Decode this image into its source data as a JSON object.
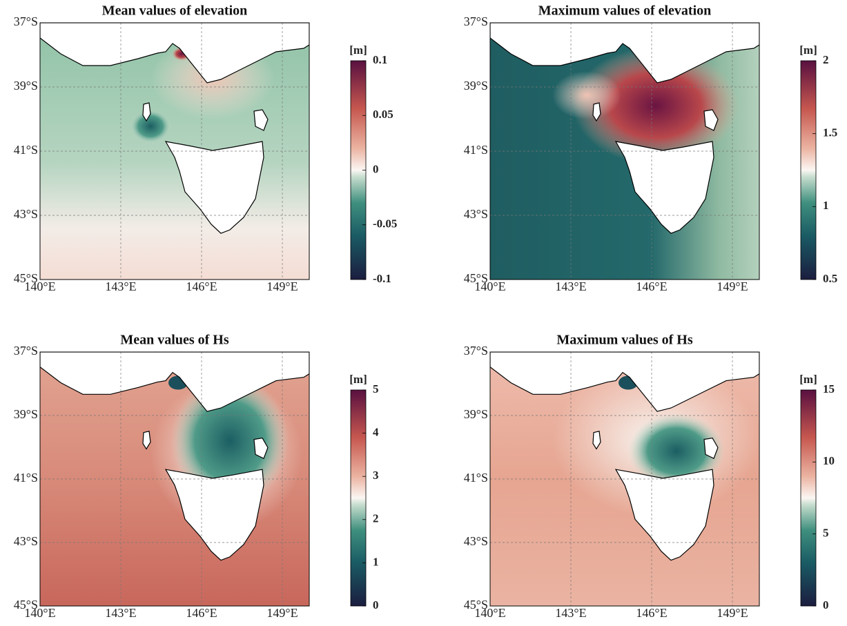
{
  "panels": [
    {
      "title": "Mean values of elevation",
      "xlim": [
        140,
        150
      ],
      "ylim": [
        -45,
        -37
      ],
      "lat_ticks": [
        {
          "value": -37,
          "label": "37°S"
        },
        {
          "value": -39,
          "label": "39°S"
        },
        {
          "value": -41,
          "label": "41°S"
        },
        {
          "value": -43,
          "label": "43°S"
        },
        {
          "value": -45,
          "label": "45°S"
        }
      ],
      "lon_ticks": [
        {
          "value": 140,
          "label": "140°E"
        },
        {
          "value": 143,
          "label": "143°E"
        },
        {
          "value": 146,
          "label": "146°E"
        },
        {
          "value": 149,
          "label": "149°E"
        }
      ],
      "colorbar": {
        "unit": "[m]",
        "lim": [
          -0.1,
          0.1
        ],
        "ticks": [
          -0.1,
          -0.05,
          0,
          0.05,
          0.1
        ]
      }
    },
    {
      "title": "Maximum values of elevation",
      "xlim": [
        140,
        150
      ],
      "ylim": [
        -45,
        -37
      ],
      "lat_ticks": [
        {
          "value": -37,
          "label": "37°S"
        },
        {
          "value": -39,
          "label": "39°S"
        },
        {
          "value": -41,
          "label": "41°S"
        },
        {
          "value": -43,
          "label": "43°S"
        },
        {
          "value": -45,
          "label": "45°S"
        }
      ],
      "lon_ticks": [
        {
          "value": 140,
          "label": "140°E"
        },
        {
          "value": 143,
          "label": "143°E"
        },
        {
          "value": 146,
          "label": "146°E"
        },
        {
          "value": 149,
          "label": "149°E"
        }
      ],
      "colorbar": {
        "unit": "[m]",
        "lim": [
          0.5,
          2
        ],
        "ticks": [
          0.5,
          1,
          1.5,
          2
        ]
      }
    },
    {
      "title": "Mean values of Hs",
      "xlim": [
        140,
        150
      ],
      "ylim": [
        -45,
        -37
      ],
      "lat_ticks": [
        {
          "value": -37,
          "label": "37°S"
        },
        {
          "value": -39,
          "label": "39°S"
        },
        {
          "value": -41,
          "label": "41°S"
        },
        {
          "value": -43,
          "label": "43°S"
        },
        {
          "value": -45,
          "label": "45°S"
        }
      ],
      "lon_ticks": [
        {
          "value": 140,
          "label": "140°E"
        },
        {
          "value": 143,
          "label": "143°E"
        },
        {
          "value": 146,
          "label": "146°E"
        },
        {
          "value": 149,
          "label": "149°E"
        }
      ],
      "colorbar": {
        "unit": "[m]",
        "lim": [
          0,
          5
        ],
        "ticks": [
          0,
          1,
          2,
          3,
          4,
          5
        ]
      }
    },
    {
      "title": "Maximum values of Hs",
      "xlim": [
        140,
        150
      ],
      "ylim": [
        -45,
        -37
      ],
      "lat_ticks": [
        {
          "value": -37,
          "label": "37°S"
        },
        {
          "value": -39,
          "label": "39°S"
        },
        {
          "value": -41,
          "label": "41°S"
        },
        {
          "value": -43,
          "label": "43°S"
        },
        {
          "value": -45,
          "label": "45°S"
        }
      ],
      "lon_ticks": [
        {
          "value": 140,
          "label": "140°E"
        },
        {
          "value": 143,
          "label": "143°E"
        },
        {
          "value": 146,
          "label": "146°E"
        },
        {
          "value": 149,
          "label": "149°E"
        }
      ],
      "colorbar": {
        "unit": "[m]",
        "lim": [
          0,
          15
        ],
        "ticks": [
          0,
          5,
          10,
          15
        ]
      }
    }
  ]
}
